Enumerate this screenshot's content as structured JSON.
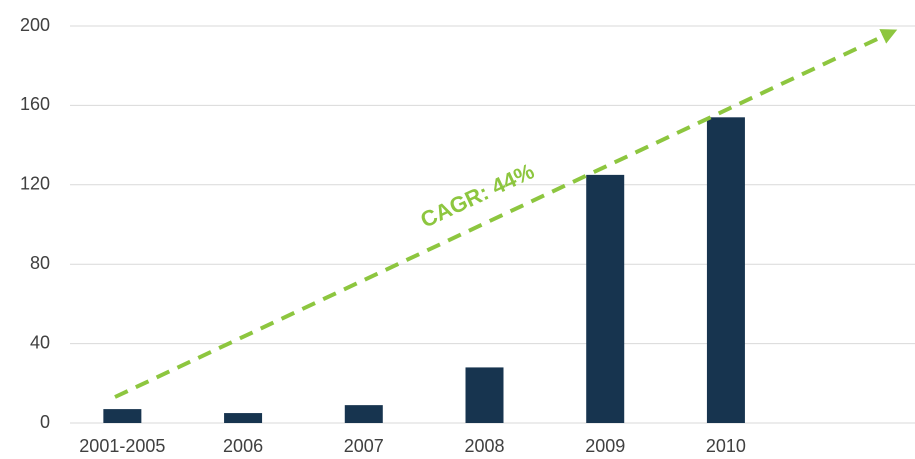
{
  "chart_data": {
    "type": "bar",
    "categories": [
      "2001-2005",
      "2006",
      "2007",
      "2008",
      "2009",
      "2010",
      null
    ],
    "values": [
      7,
      5,
      9,
      28,
      125,
      154,
      null
    ],
    "color": "#17344f",
    "ylim": [
      0,
      200
    ],
    "yticks": [
      0,
      40,
      80,
      120,
      160,
      200
    ],
    "grid": true,
    "annotation": "CAGR: 44%"
  }
}
